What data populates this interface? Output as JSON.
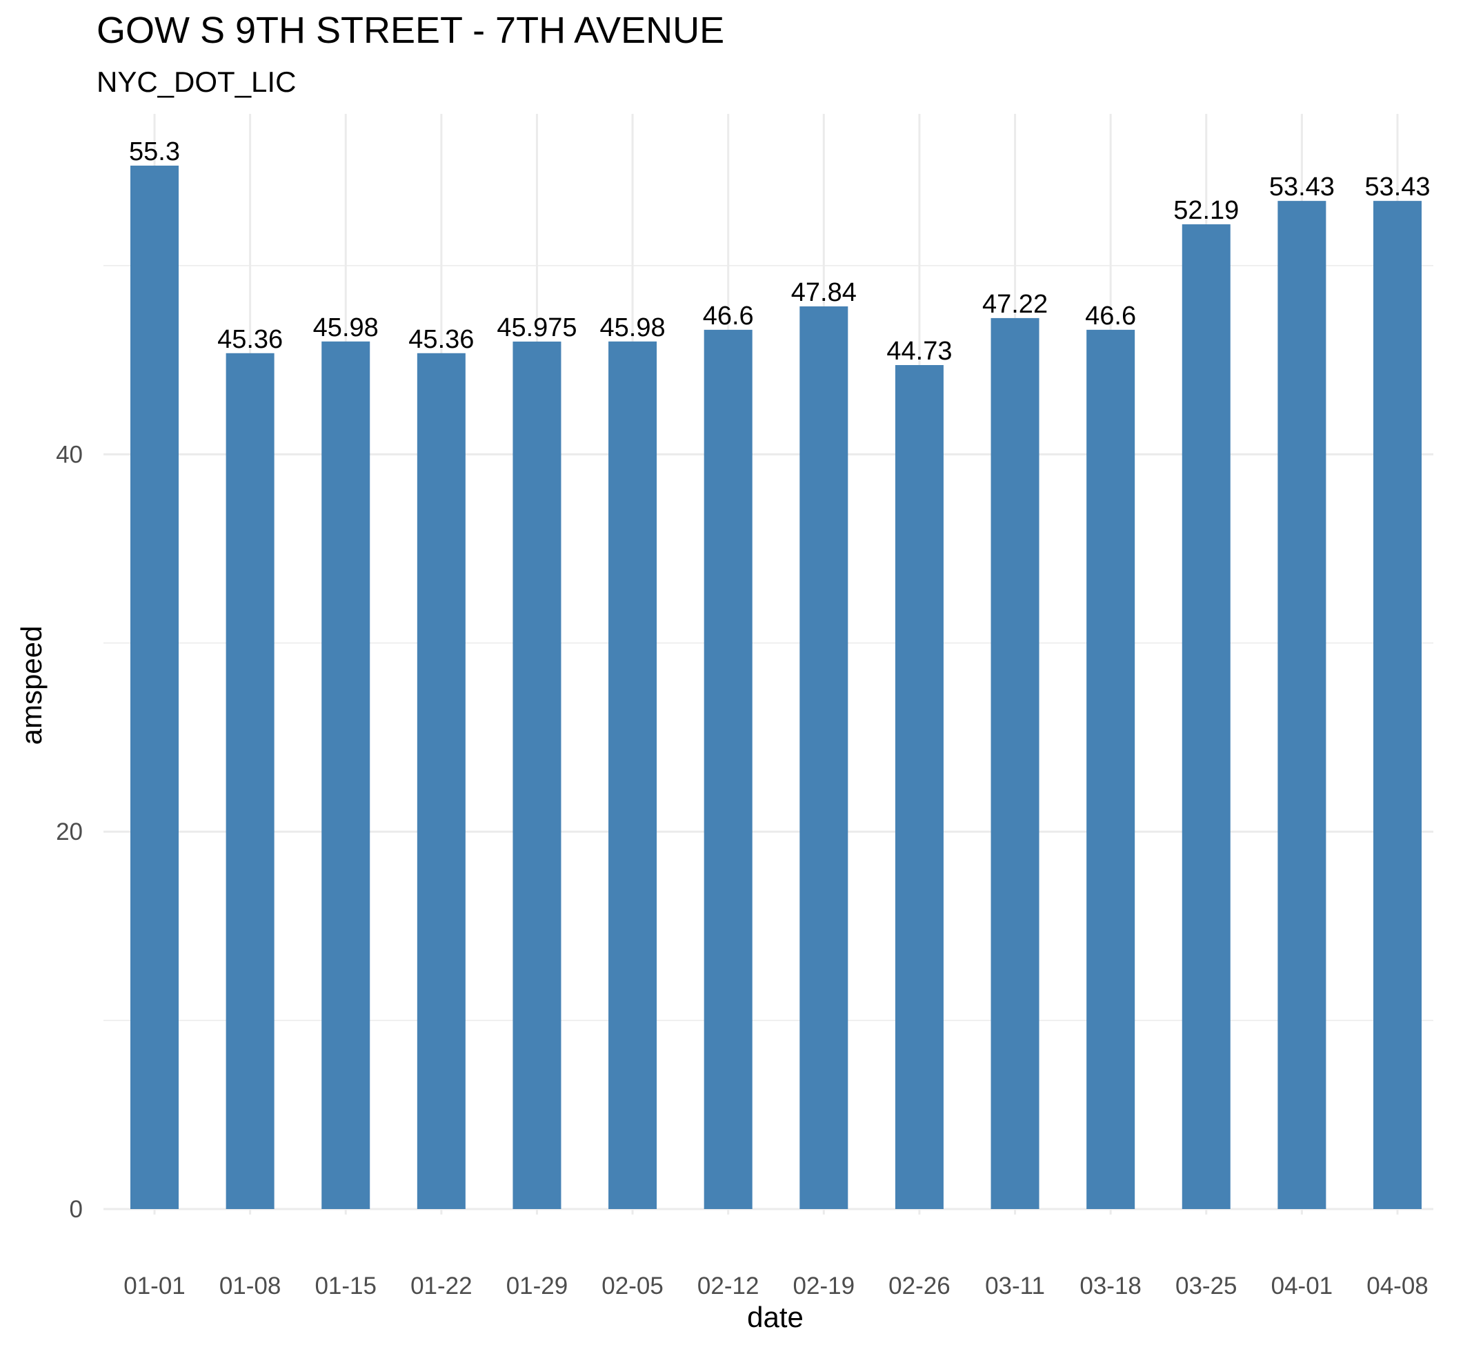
{
  "chart_data": {
    "type": "bar",
    "title": "GOW S 9TH STREET - 7TH AVENUE",
    "subtitle": "NYC_DOT_LIC",
    "xlabel": "date",
    "ylabel": "amspeed",
    "categories": [
      "01-01",
      "01-08",
      "01-15",
      "01-22",
      "01-29",
      "02-05",
      "02-12",
      "02-19",
      "02-26",
      "03-11",
      "03-18",
      "03-25",
      "04-01",
      "04-08"
    ],
    "values": [
      55.3,
      45.36,
      45.98,
      45.36,
      45.975,
      45.98,
      46.6,
      47.84,
      44.73,
      47.22,
      46.6,
      52.19,
      53.43,
      53.43
    ],
    "data_labels": [
      "55.3",
      "45.36",
      "45.98",
      "45.36",
      "45.975",
      "45.98",
      "46.6",
      "47.84",
      "44.73",
      "47.22",
      "46.6",
      "52.19",
      "53.43",
      "53.43"
    ],
    "y_ticks": [
      0,
      20,
      40
    ],
    "ylim": [
      0,
      55.3
    ],
    "grid": true,
    "legend": "none",
    "bar_color": "#4682B4",
    "grid_color": "#EBEBEB"
  }
}
